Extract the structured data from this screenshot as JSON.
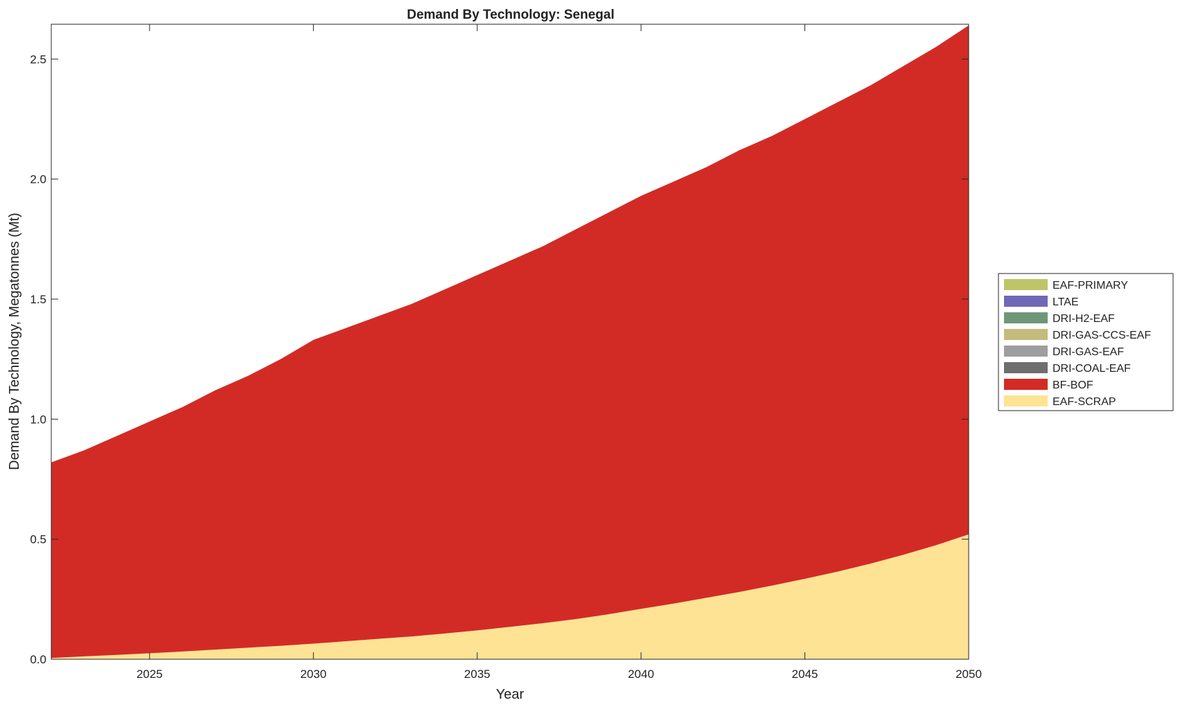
{
  "chart_data": {
    "type": "area",
    "stacked": true,
    "title": "Demand By Technology: Senegal",
    "xlabel": "Year",
    "ylabel": "Demand By Technology, Megatonnes (Mt)",
    "xlim": [
      2022,
      2050
    ],
    "ylim": [
      0,
      2.645
    ],
    "xticks": [
      2025,
      2030,
      2035,
      2040,
      2045,
      2050
    ],
    "yticks": [
      "0.0",
      "0.5",
      "1.0",
      "1.5",
      "2.0",
      "2.5"
    ],
    "grid": false,
    "legend_position": "right",
    "x": [
      2022,
      2023,
      2024,
      2025,
      2026,
      2027,
      2028,
      2029,
      2030,
      2031,
      2032,
      2033,
      2034,
      2035,
      2036,
      2037,
      2038,
      2039,
      2040,
      2041,
      2042,
      2043,
      2044,
      2045,
      2046,
      2047,
      2048,
      2049,
      2050
    ],
    "series": [
      {
        "name": "EAF-SCRAP",
        "color": "#fee394",
        "values": [
          0.005,
          0.012,
          0.018,
          0.025,
          0.032,
          0.04,
          0.048,
          0.056,
          0.065,
          0.075,
          0.085,
          0.095,
          0.107,
          0.12,
          0.135,
          0.15,
          0.167,
          0.187,
          0.21,
          0.232,
          0.256,
          0.28,
          0.307,
          0.335,
          0.365,
          0.398,
          0.435,
          0.475,
          0.52
        ]
      },
      {
        "name": "BF-BOF",
        "color": "#d22b25",
        "values": [
          0.815,
          0.858,
          0.912,
          0.965,
          1.018,
          1.08,
          1.132,
          1.194,
          1.265,
          1.305,
          1.345,
          1.385,
          1.433,
          1.48,
          1.525,
          1.57,
          1.623,
          1.673,
          1.72,
          1.758,
          1.794,
          1.84,
          1.873,
          1.915,
          1.955,
          1.992,
          2.035,
          2.075,
          2.12
        ]
      },
      {
        "name": "DRI-COAL-EAF",
        "color": "#6e6e6e",
        "values": [
          0,
          0,
          0,
          0,
          0,
          0,
          0,
          0,
          0,
          0,
          0,
          0,
          0,
          0,
          0,
          0,
          0,
          0,
          0,
          0,
          0,
          0,
          0,
          0,
          0,
          0,
          0,
          0,
          0
        ]
      },
      {
        "name": "DRI-GAS-EAF",
        "color": "#9e9e9e",
        "values": [
          0,
          0,
          0,
          0,
          0,
          0,
          0,
          0,
          0,
          0,
          0,
          0,
          0,
          0,
          0,
          0,
          0,
          0,
          0,
          0,
          0,
          0,
          0,
          0,
          0,
          0,
          0,
          0,
          0
        ]
      },
      {
        "name": "DRI-GAS-CCS-EAF",
        "color": "#c4bb7d",
        "values": [
          0,
          0,
          0,
          0,
          0,
          0,
          0,
          0,
          0,
          0,
          0,
          0,
          0,
          0,
          0,
          0,
          0,
          0,
          0,
          0,
          0,
          0,
          0,
          0,
          0,
          0,
          0,
          0,
          0
        ]
      },
      {
        "name": "DRI-H2-EAF",
        "color": "#70967a",
        "values": [
          0,
          0,
          0,
          0,
          0,
          0,
          0,
          0,
          0,
          0,
          0,
          0,
          0,
          0,
          0,
          0,
          0,
          0,
          0,
          0,
          0,
          0,
          0,
          0,
          0,
          0,
          0,
          0,
          0
        ]
      },
      {
        "name": "LTAE",
        "color": "#7167b7",
        "values": [
          0,
          0,
          0,
          0,
          0,
          0,
          0,
          0,
          0,
          0,
          0,
          0,
          0,
          0,
          0,
          0,
          0,
          0,
          0,
          0,
          0,
          0,
          0,
          0,
          0,
          0,
          0,
          0,
          0
        ]
      },
      {
        "name": "EAF-PRIMARY",
        "color": "#bcc56a",
        "values": [
          0,
          0,
          0,
          0,
          0,
          0,
          0,
          0,
          0,
          0,
          0,
          0,
          0,
          0,
          0,
          0,
          0,
          0,
          0,
          0,
          0,
          0,
          0,
          0,
          0,
          0,
          0,
          0,
          0
        ]
      }
    ],
    "legend_order": [
      "EAF-PRIMARY",
      "LTAE",
      "DRI-H2-EAF",
      "DRI-GAS-CCS-EAF",
      "DRI-GAS-EAF",
      "DRI-COAL-EAF",
      "BF-BOF",
      "EAF-SCRAP"
    ]
  }
}
